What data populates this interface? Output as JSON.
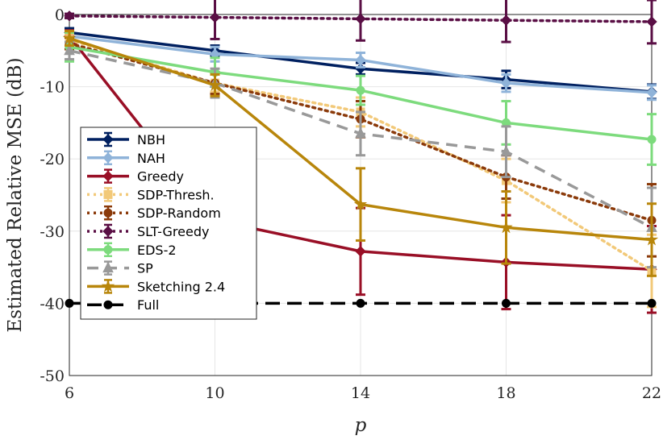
{
  "chart_data": {
    "type": "line",
    "xlabel": "p",
    "ylabel": "Estimated Relative MSE (dB)",
    "x": [
      6,
      10,
      14,
      18,
      22
    ],
    "xlim": [
      6,
      22
    ],
    "ylim": [
      -50,
      0
    ],
    "xticks": [
      "6",
      "10",
      "14",
      "18",
      "22"
    ],
    "yticks": [
      "0",
      "-10",
      "-20",
      "-30",
      "-40",
      "-50"
    ],
    "grid": true,
    "legend_position": "left",
    "series": [
      {
        "name": "NBH",
        "color": "#002060",
        "dash": "solid",
        "marker": "diamond",
        "values": [
          -2.5,
          -5,
          -7.5,
          -9,
          -10.7
        ],
        "err": [
          0.6,
          0.7,
          0.8,
          1.2,
          1.0
        ]
      },
      {
        "name": "NAH",
        "color": "#8FB3D9",
        "dash": "solid",
        "marker": "diamond",
        "values": [
          -3,
          -5.5,
          -6.3,
          -9.5,
          -10.8
        ],
        "err": [
          0.8,
          1.0,
          1.0,
          1.2,
          1.0
        ]
      },
      {
        "name": "Greedy",
        "color": "#990F26",
        "dash": "solid",
        "marker": "diamond",
        "values": [
          -3,
          -28.5,
          -32.8,
          -34.3,
          -35.3
        ],
        "err": [
          0.8,
          1.5,
          6,
          6.5,
          6
        ]
      },
      {
        "name": "SDP-Thresh.",
        "color": "#F2C979",
        "dash": "dot",
        "marker": "square",
        "values": [
          -3.5,
          -9.5,
          -13.5,
          -23,
          -35.5
        ],
        "err": [
          0.8,
          1.2,
          2,
          3,
          5
        ]
      },
      {
        "name": "SDP-Random",
        "color": "#8B3A0A",
        "dash": "dot",
        "marker": "circle",
        "values": [
          -4,
          -9.5,
          -14.5,
          -22.5,
          -28.5
        ],
        "err": [
          0.8,
          1.5,
          2.5,
          3,
          5
        ]
      },
      {
        "name": "SLT-Greedy",
        "color": "#5A0F45",
        "dash": "dot",
        "marker": "diamond",
        "values": [
          -0.2,
          -0.4,
          -0.6,
          -0.8,
          -1.0
        ],
        "err": [
          0.3,
          3,
          3,
          3,
          3
        ]
      },
      {
        "name": "EDS-2",
        "color": "#7DDB7D",
        "dash": "solid",
        "marker": "circle",
        "values": [
          -4.5,
          -8,
          -10.5,
          -15,
          -17.3
        ],
        "err": [
          2,
          2,
          2,
          3,
          3.5
        ]
      },
      {
        "name": "SP",
        "color": "#999999",
        "dash": "dash",
        "marker": "triangle",
        "values": [
          -5,
          -9.5,
          -16.5,
          -19,
          -29.5
        ],
        "err": [
          1.2,
          2,
          3,
          3.5,
          5.5
        ]
      },
      {
        "name": "Sketching 2.4",
        "color": "#B8860B",
        "dash": "solid",
        "marker": "star",
        "values": [
          -3.3,
          -9.8,
          -26.3,
          -29.5,
          -31.2
        ],
        "err": [
          1,
          1.5,
          5,
          5,
          5
        ]
      },
      {
        "name": "Full",
        "color": "#000000",
        "dash": "bigdash",
        "marker": "circle",
        "values": [
          -40,
          -40,
          -40,
          -40,
          -40
        ],
        "err": null
      }
    ]
  }
}
